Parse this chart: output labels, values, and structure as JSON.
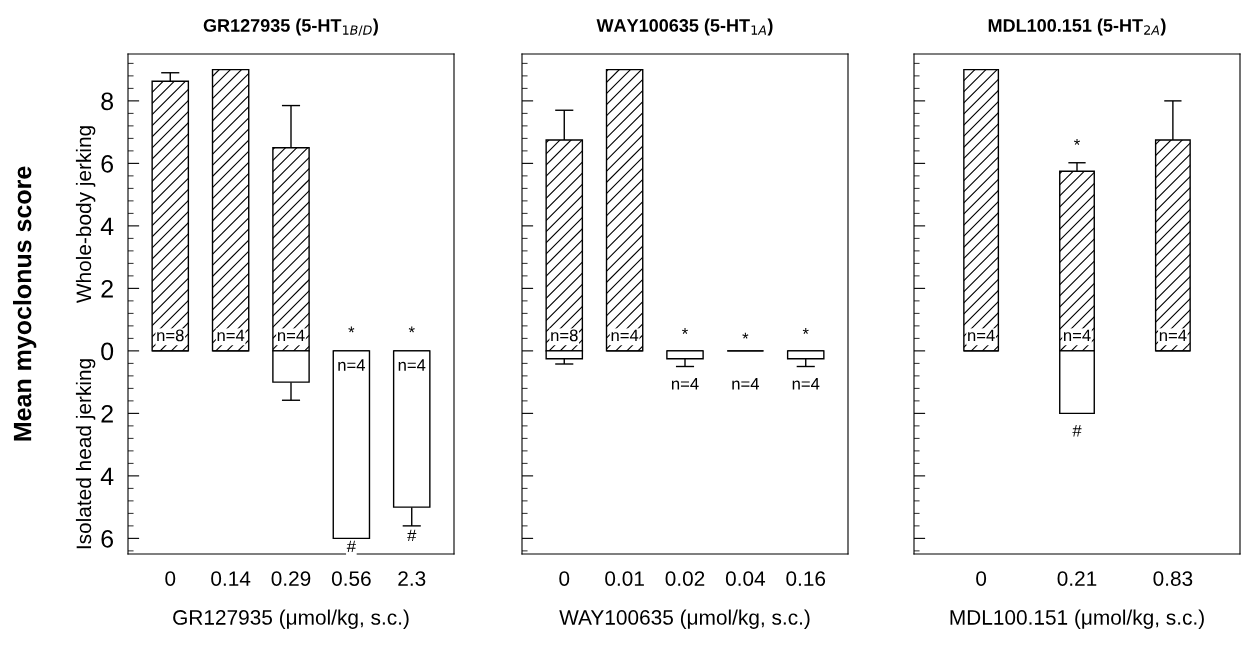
{
  "chart_data": [
    {
      "type": "bar",
      "title": "GR127935 (5-HT$_{1B/D}$)",
      "xlabel": "GR127935 (μmol/kg, s.c.)",
      "ylabel": "Mean myoclonus score",
      "stacked": false,
      "grid": false,
      "categories": [
        "0",
        "0.14",
        "0.29",
        "0.56",
        "2.3"
      ],
      "series": [
        {
          "color": "#000000",
          "values": [
            8.63,
            9.0,
            6.5,
            0,
            0
          ],
          "errors": [
            [
              8.63,
              8.9
            ],
            null,
            [
              6.5,
              7.85
            ],
            null,
            null
          ]
        },
        {
          "color": "#000000",
          "values": [
            0,
            0,
            -1.0,
            -6.0,
            -5.0
          ],
          "errors": [
            null,
            null,
            [
              -1.58,
              -1.0
            ],
            null,
            [
              -5.6,
              -5.0
            ]
          ]
        }
      ],
      "ylim": [
        -6.5,
        9.5
      ],
      "yticks": [
        {
          "value": -6,
          "label": "6"
        },
        {
          "value": -4,
          "label": "4"
        },
        {
          "value": -2,
          "label": "2"
        },
        0,
        2,
        4,
        6,
        8
      ],
      "annotations": [
        "Whole-body jerking",
        "Isolated head jerking",
        "n=8",
        "n=4",
        "n=4",
        "n=4",
        "n=4",
        "*",
        "*",
        "#",
        "#"
      ]
    },
    {
      "type": "bar",
      "title": "WAY100635 (5-HT$_{1A}$)",
      "xlabel": "WAY100635 (μmol/kg, s.c.)",
      "stacked": false,
      "grid": false,
      "tick_labels": "x",
      "categories": [
        "0",
        "0.01",
        "0.02",
        "0.04",
        "0.16"
      ],
      "series": [
        {
          "color": "#000000",
          "values": [
            6.75,
            9.0,
            0,
            0,
            0
          ],
          "errors": [
            [
              6.75,
              7.7
            ],
            null,
            null,
            null,
            null
          ]
        },
        {
          "color": "#000000",
          "values": [
            -0.25,
            0,
            -0.25,
            0,
            -0.25
          ],
          "errors": [
            [
              -0.42,
              -0.25
            ],
            null,
            [
              -0.5,
              -0.25
            ],
            null,
            [
              -0.5,
              -0.25
            ]
          ]
        }
      ],
      "ylim": [
        -6.5,
        9.5
      ],
      "yticks": [
        -6,
        -4,
        -2,
        0,
        2,
        4,
        6,
        8
      ],
      "annotations": [
        "n=8",
        "n=4",
        "*",
        "*",
        "*",
        "n=4",
        "n=4",
        "n=4"
      ]
    },
    {
      "type": "bar",
      "title": "MDL100.151 (5-HT$_{2A}$)",
      "xlabel": "MDL100.151 (μmol/kg, s.c.)",
      "stacked": false,
      "grid": false,
      "tick_labels": "x",
      "categories": [
        "0",
        "0.21",
        "0.83"
      ],
      "series": [
        {
          "color": "#000000",
          "values": [
            9.0,
            5.75,
            6.75
          ],
          "errors": [
            null,
            [
              5.75,
              6.02
            ],
            [
              6.75,
              8.0
            ]
          ]
        },
        {
          "color": "#000000",
          "values": [
            0,
            -2.0,
            0
          ],
          "errors": [
            null,
            null,
            null
          ]
        }
      ],
      "ylim": [
        -6.5,
        9.5
      ],
      "yticks": [
        -6,
        -4,
        -2,
        0,
        2,
        4,
        6,
        8
      ],
      "annotations": [
        "n=4",
        "n=4",
        "n=4",
        "*",
        "#"
      ]
    }
  ]
}
